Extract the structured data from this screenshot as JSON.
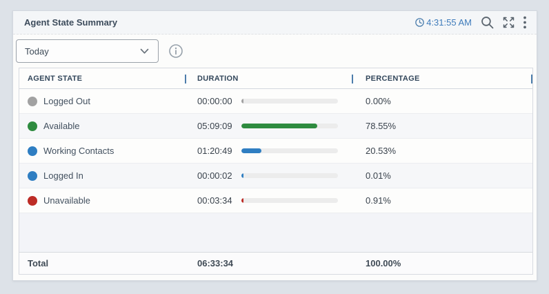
{
  "page": {
    "background": "#dde2e8"
  },
  "widget": {
    "title": "Agent State Summary",
    "header": {
      "refresh_time": "4:31:55 AM",
      "icons": {
        "clock": "clock-history-icon",
        "search": "search-icon",
        "expand": "expand-icon",
        "menu": "kebab-menu-icon"
      }
    },
    "filter": {
      "selected": "Today",
      "chevron_icon": "chevron-down-icon",
      "info_icon": "info-icon"
    },
    "table": {
      "columns": [
        "AGENT STATE",
        "DURATION",
        "PERCENTAGE"
      ],
      "rows": [
        {
          "state": "Logged Out",
          "color": "#a2a2a2",
          "duration": "00:00:00",
          "percentage": "0.00%",
          "percent": 0.0
        },
        {
          "state": "Available",
          "color": "#2e8b3f",
          "duration": "05:09:09",
          "percentage": "78.55%",
          "percent": 78.55
        },
        {
          "state": "Working Contacts",
          "color": "#2f7ec2",
          "duration": "01:20:49",
          "percentage": "20.53%",
          "percent": 20.53
        },
        {
          "state": "Logged In",
          "color": "#2f7ec2",
          "duration": "00:00:02",
          "percentage": "0.01%",
          "percent": 0.01
        },
        {
          "state": "Unavailable",
          "color": "#bd2c26",
          "duration": "00:03:34",
          "percentage": "0.91%",
          "percent": 0.91
        }
      ],
      "total": {
        "label": "Total",
        "duration": "06:33:34",
        "percentage": "100.00%"
      }
    },
    "colors": {
      "separator_accent": "#4d7dab",
      "time_text": "#3f7cbb",
      "bar_track": "#ececec"
    }
  }
}
